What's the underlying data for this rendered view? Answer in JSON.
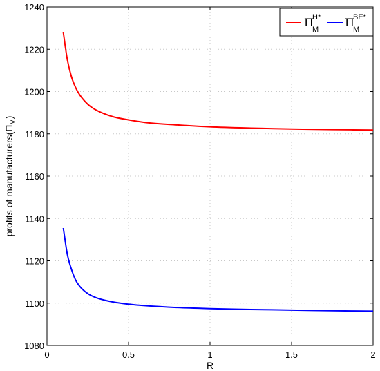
{
  "chart_data": {
    "type": "line",
    "xlabel": "R",
    "ylabel": "profits of manufacturers(Π",
    "ylabel_sub": "M",
    "ylabel_close": ")",
    "xlim": [
      0,
      2
    ],
    "ylim": [
      1080,
      1240
    ],
    "xticks": [
      0,
      0.5,
      1,
      1.5,
      2
    ],
    "xtick_labels": [
      "0",
      "0.5",
      "1",
      "1.5",
      "2"
    ],
    "yticks": [
      1080,
      1100,
      1120,
      1140,
      1160,
      1180,
      1200,
      1220,
      1240
    ],
    "ytick_labels": [
      "1080",
      "1100",
      "1120",
      "1140",
      "1160",
      "1180",
      "1200",
      "1220",
      "1240"
    ],
    "grid": true,
    "legend_position": "top-right",
    "x": [
      0.1,
      0.125,
      0.15,
      0.175,
      0.2,
      0.25,
      0.3,
      0.4,
      0.5,
      0.6,
      0.8,
      1.0,
      1.25,
      1.5,
      1.75,
      2.0
    ],
    "series": [
      {
        "name": "Π",
        "name_sup": "H*",
        "name_sub": "M",
        "color": "#ff0000",
        "values": [
          1228,
          1215,
          1207,
          1202,
          1198.5,
          1194,
          1191.3,
          1188.2,
          1186.6,
          1185.4,
          1184.2,
          1183.3,
          1182.7,
          1182.3,
          1182.0,
          1181.8
        ]
      },
      {
        "name": "Π",
        "name_sup": "BE*",
        "name_sub": "M",
        "color": "#0000ff",
        "values": [
          1135.5,
          1123,
          1116,
          1111,
          1108,
          1104.5,
          1102.6,
          1100.6,
          1099.5,
          1098.8,
          1097.9,
          1097.4,
          1097.0,
          1096.7,
          1096.4,
          1096.2
        ]
      }
    ]
  }
}
